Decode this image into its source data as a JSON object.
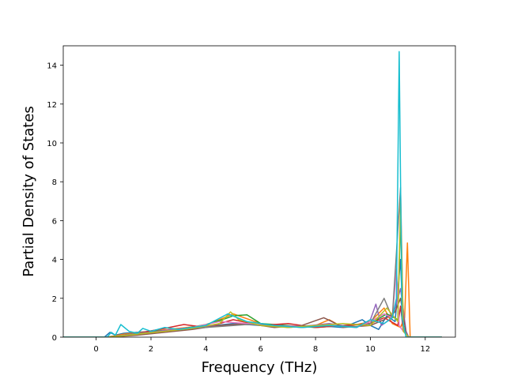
{
  "chart_data": {
    "type": "line",
    "title": "",
    "xlabel": "Frequency (THz)",
    "ylabel": "Partial Density of States",
    "xlim": [
      -1.2,
      13.1
    ],
    "ylim": [
      0,
      15.0
    ],
    "xticks": [
      0,
      2,
      4,
      6,
      8,
      10,
      12
    ],
    "yticks": [
      0,
      2,
      4,
      6,
      8,
      10,
      12,
      14
    ],
    "grid": false,
    "legend": "none",
    "series": [
      {
        "color": "#1f77b4",
        "x": [
          -1.2,
          0.3,
          0.5,
          0.7,
          1.0,
          1.5,
          2.0,
          3.0,
          4.0,
          5.0,
          6.0,
          7.0,
          8.0,
          9.0,
          9.7,
          10.0,
          10.3,
          10.6,
          10.9,
          11.1,
          11.2,
          11.4,
          12.6
        ],
        "y": [
          0,
          0,
          0.25,
          0.1,
          0.2,
          0.25,
          0.3,
          0.4,
          0.55,
          0.7,
          0.6,
          0.55,
          0.6,
          0.5,
          0.9,
          0.6,
          0.4,
          1.1,
          0.8,
          4.0,
          0.3,
          0,
          0
        ]
      },
      {
        "color": "#ff7f0e",
        "x": [
          -1.2,
          0.4,
          1.0,
          2.0,
          3.0,
          4.0,
          5.0,
          6.0,
          7.0,
          8.0,
          8.5,
          9.0,
          10.0,
          10.5,
          10.8,
          11.1,
          11.25,
          11.35,
          11.45,
          12.6
        ],
        "y": [
          0,
          0,
          0.15,
          0.3,
          0.45,
          0.6,
          1.2,
          0.7,
          0.5,
          0.6,
          0.9,
          0.5,
          0.8,
          1.5,
          0.7,
          0.5,
          1.0,
          4.85,
          0,
          0
        ]
      },
      {
        "color": "#2ca02c",
        "x": [
          -1.2,
          0.4,
          1.0,
          2.0,
          3.0,
          4.0,
          4.6,
          5.0,
          5.5,
          6.0,
          7.0,
          8.0,
          9.0,
          10.0,
          10.6,
          11.0,
          11.1,
          11.2,
          11.4,
          12.6
        ],
        "y": [
          0,
          0,
          0.1,
          0.3,
          0.4,
          0.65,
          0.9,
          1.1,
          1.15,
          0.7,
          0.6,
          0.5,
          0.6,
          0.7,
          1.2,
          0.9,
          6.3,
          0.4,
          0,
          0
        ]
      },
      {
        "color": "#d62728",
        "x": [
          -1.2,
          0.5,
          1.5,
          2.5,
          3.2,
          4.0,
          5.0,
          6.0,
          7.0,
          8.0,
          9.0,
          10.0,
          10.5,
          11.0,
          11.1,
          11.2,
          11.4,
          12.6
        ],
        "y": [
          0,
          0,
          0.2,
          0.45,
          0.65,
          0.5,
          0.9,
          0.6,
          0.7,
          0.5,
          0.6,
          0.7,
          1.0,
          0.6,
          1.6,
          0.3,
          0,
          0
        ]
      },
      {
        "color": "#9467bd",
        "x": [
          -1.2,
          0.5,
          1.5,
          2.5,
          3.5,
          4.5,
          5.5,
          6.5,
          7.5,
          8.5,
          9.5,
          10.0,
          10.2,
          10.4,
          10.8,
          11.1,
          11.3,
          11.4,
          12.6
        ],
        "y": [
          0,
          0,
          0.15,
          0.35,
          0.5,
          0.6,
          0.7,
          0.6,
          0.55,
          0.7,
          0.5,
          0.9,
          1.7,
          0.6,
          1.0,
          2.5,
          0.3,
          0,
          0
        ]
      },
      {
        "color": "#8c564b",
        "x": [
          -1.2,
          0.5,
          1.5,
          2.5,
          3.5,
          4.5,
          5.5,
          6.5,
          7.5,
          8.3,
          8.6,
          9.0,
          10.0,
          10.5,
          10.9,
          11.1,
          11.3,
          11.4,
          12.6
        ],
        "y": [
          0,
          0,
          0.1,
          0.25,
          0.4,
          0.6,
          0.7,
          0.5,
          0.6,
          1.0,
          0.8,
          0.5,
          0.6,
          0.9,
          1.3,
          2.0,
          0.2,
          0,
          0
        ]
      },
      {
        "color": "#e377c2",
        "x": [
          -1.2,
          0.5,
          1.5,
          2.5,
          3.5,
          4.5,
          5.5,
          6.5,
          7.5,
          8.5,
          9.5,
          10.0,
          10.5,
          10.8,
          10.95,
          11.05,
          11.2,
          11.4,
          12.6
        ],
        "y": [
          0,
          0,
          0.2,
          0.3,
          0.5,
          0.8,
          0.7,
          0.6,
          0.55,
          0.6,
          0.5,
          0.8,
          1.2,
          1.0,
          3.5,
          0.6,
          0.3,
          0,
          0
        ]
      },
      {
        "color": "#7f7f7f",
        "x": [
          -1.2,
          0.5,
          1.5,
          2.5,
          3.5,
          4.5,
          5.5,
          6.5,
          7.5,
          8.5,
          9.5,
          10.0,
          10.5,
          10.8,
          11.1,
          11.2,
          11.4,
          12.6
        ],
        "y": [
          0,
          0,
          0.2,
          0.3,
          0.45,
          0.55,
          0.65,
          0.6,
          0.5,
          0.6,
          0.55,
          0.7,
          2.0,
          1.0,
          7.7,
          0.4,
          0,
          0
        ]
      },
      {
        "color": "#bcbd22",
        "x": [
          -1.2,
          0.5,
          1.5,
          2.5,
          3.5,
          4.5,
          4.9,
          5.2,
          6.0,
          7.0,
          8.0,
          9.0,
          10.0,
          10.6,
          11.0,
          11.1,
          11.2,
          11.4,
          12.6
        ],
        "y": [
          0,
          0,
          0.15,
          0.3,
          0.45,
          0.7,
          1.3,
          0.9,
          0.6,
          0.5,
          0.6,
          0.7,
          0.6,
          1.5,
          0.8,
          7.0,
          0.3,
          0,
          0
        ]
      },
      {
        "color": "#17becf",
        "x": [
          -1.2,
          0.4,
          0.55,
          0.7,
          0.9,
          1.2,
          1.5,
          1.7,
          2.0,
          2.5,
          3.0,
          4.0,
          4.8,
          5.5,
          6.5,
          7.5,
          8.5,
          9.5,
          10.0,
          10.5,
          10.8,
          10.95,
          11.05,
          11.15,
          11.3,
          12.6
        ],
        "y": [
          0,
          0,
          0.25,
          0.1,
          0.65,
          0.3,
          0.2,
          0.45,
          0.3,
          0.5,
          0.4,
          0.6,
          1.2,
          0.8,
          0.6,
          0.5,
          0.6,
          0.5,
          0.9,
          0.7,
          1.0,
          2.0,
          14.7,
          1.0,
          0,
          0
        ]
      }
    ]
  }
}
